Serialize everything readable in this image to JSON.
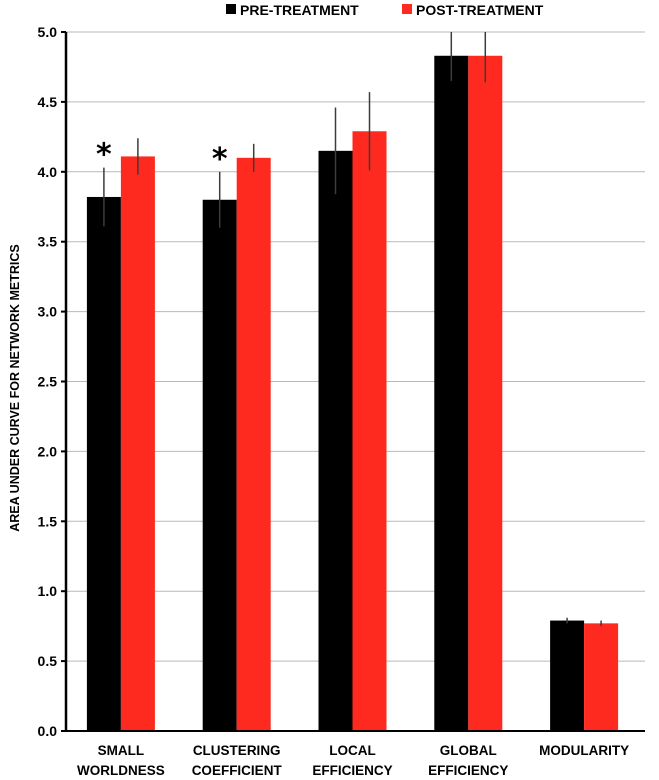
{
  "chart_data": {
    "type": "bar",
    "ylabel": "AREA UNDER CURVE FOR NETWORK METRICS",
    "xlabel": "",
    "ylim": [
      0.0,
      5.0
    ],
    "yticks": [
      "0.0",
      "0.5",
      "1.0",
      "1.5",
      "2.0",
      "2.5",
      "3.0",
      "3.5",
      "4.0",
      "4.5",
      "5.0"
    ],
    "categories": [
      [
        "SMALL",
        "WORLDNESS"
      ],
      [
        "CLUSTERING",
        "COEFFICIENT"
      ],
      [
        "LOCAL",
        "EFFICIENCY"
      ],
      [
        "GLOBAL",
        "EFFICIENCY"
      ],
      [
        "MODULARITY"
      ]
    ],
    "series": [
      {
        "name": "PRE-TREATMENT",
        "color": "#000000",
        "values": [
          3.82,
          3.8,
          4.15,
          4.83,
          0.79
        ],
        "errors": [
          0.21,
          0.2,
          0.31,
          0.18,
          0.02
        ]
      },
      {
        "name": "POST-TREATMENT",
        "color": "#ff2a1f",
        "values": [
          4.11,
          4.1,
          4.29,
          4.83,
          0.77
        ],
        "errors": [
          0.13,
          0.1,
          0.28,
          0.19,
          0.02
        ]
      }
    ],
    "annotations": [
      {
        "category_index": 0,
        "text": "*"
      },
      {
        "category_index": 1,
        "text": "*"
      }
    ],
    "legend": "top-center",
    "grid": true
  }
}
